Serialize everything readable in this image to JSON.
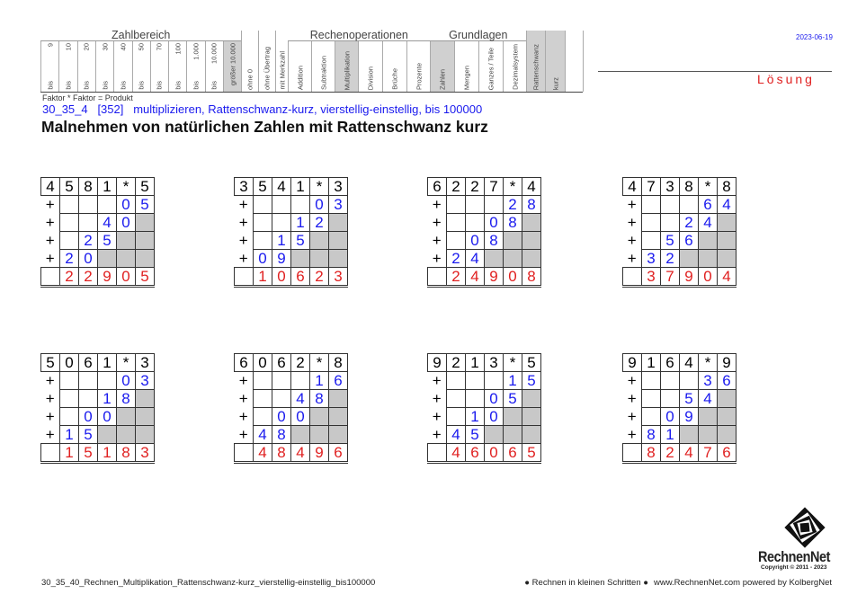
{
  "header": {
    "groups": [
      "Zahlbereich",
      "Rechenoperationen",
      "Grundlagen"
    ],
    "zahlbereich": [
      {
        "top": "9",
        "bot": "bis"
      },
      {
        "top": "10",
        "bot": "bis"
      },
      {
        "top": "20",
        "bot": "bis"
      },
      {
        "top": "30",
        "bot": "bis"
      },
      {
        "top": "40",
        "bot": "bis"
      },
      {
        "top": "50",
        "bot": "bis"
      },
      {
        "top": "70",
        "bot": "bis"
      },
      {
        "top": "100",
        "bot": "bis"
      },
      {
        "top": "1.000",
        "bot": "bis"
      },
      {
        "top": "10.000",
        "bot": "bis"
      },
      {
        "top": "größer 10.000",
        "bot": "",
        "selected": true
      }
    ],
    "extras": [
      {
        "label": "ohne 0"
      },
      {
        "label": "ohne Übertrag"
      },
      {
        "label": "mit Merkzahl"
      }
    ],
    "rechenoperationen": [
      {
        "label": "Addition"
      },
      {
        "label": "Subtraktion"
      },
      {
        "label": "Multiplikation",
        "selected": true
      },
      {
        "label": "Division"
      },
      {
        "label": "Brüche"
      },
      {
        "label": "Prozente"
      }
    ],
    "grundlagen": [
      {
        "label": "Zahlen",
        "selected": true
      },
      {
        "label": "Mengen"
      },
      {
        "label": "Ganzes / Teile"
      },
      {
        "label": "Dezimalsystem"
      }
    ],
    "method": [
      {
        "label": "Rattenschwanz",
        "selected": true
      },
      {
        "label": "kurz",
        "selected": true
      },
      {
        "label": ""
      }
    ]
  },
  "formula": "Faktor * Faktor = Produkt",
  "subtitle": "30_35_4   [352]   multiplizieren, Rattenschwanz-kurz, vierstellig-einstellig, bis 100000",
  "title": "Malnehmen von natürlichen Zahlen mit Rattenschwanz kurz",
  "date": "2023-06-19",
  "solution_label": "Lösung",
  "colors": {
    "blue": "#1a1aee",
    "red": "#e02020",
    "grey": "#c8c8c8"
  },
  "exercises": [
    {
      "factor1": [
        "4",
        "5",
        "8",
        "1"
      ],
      "op": "*",
      "factor2": "5",
      "partials": [
        "05",
        "40",
        "25",
        "20"
      ],
      "result": [
        "2",
        "2",
        "9",
        "0",
        "5"
      ]
    },
    {
      "factor1": [
        "3",
        "5",
        "4",
        "1"
      ],
      "op": "*",
      "factor2": "3",
      "partials": [
        "03",
        "12",
        "15",
        "09"
      ],
      "result": [
        "1",
        "0",
        "6",
        "2",
        "3"
      ]
    },
    {
      "factor1": [
        "6",
        "2",
        "2",
        "7"
      ],
      "op": "*",
      "factor2": "4",
      "partials": [
        "28",
        "08",
        "08",
        "24"
      ],
      "result": [
        "2",
        "4",
        "9",
        "0",
        "8"
      ]
    },
    {
      "factor1": [
        "4",
        "7",
        "3",
        "8"
      ],
      "op": "*",
      "factor2": "8",
      "partials": [
        "64",
        "24",
        "56",
        "32"
      ],
      "result": [
        "3",
        "7",
        "9",
        "0",
        "4"
      ]
    },
    {
      "factor1": [
        "5",
        "0",
        "6",
        "1"
      ],
      "op": "*",
      "factor2": "3",
      "partials": [
        "03",
        "18",
        "00",
        "15"
      ],
      "result": [
        "1",
        "5",
        "1",
        "8",
        "3"
      ]
    },
    {
      "factor1": [
        "6",
        "0",
        "6",
        "2"
      ],
      "op": "*",
      "factor2": "8",
      "partials": [
        "16",
        "48",
        "00",
        "48"
      ],
      "result": [
        "4",
        "8",
        "4",
        "9",
        "6"
      ]
    },
    {
      "factor1": [
        "9",
        "2",
        "1",
        "3"
      ],
      "op": "*",
      "factor2": "5",
      "partials": [
        "15",
        "05",
        "10",
        "45"
      ],
      "result": [
        "4",
        "6",
        "0",
        "6",
        "5"
      ]
    },
    {
      "factor1": [
        "9",
        "1",
        "6",
        "4"
      ],
      "op": "*",
      "factor2": "9",
      "partials": [
        "36",
        "54",
        "09",
        "81"
      ],
      "result": [
        "8",
        "2",
        "4",
        "7",
        "6"
      ]
    }
  ],
  "plus_sign": "+",
  "footer": {
    "filename": "30_35_40_Rechnen_Multiplikation_Rattenschwanz-kurz_vierstellig-einstellig_bis100000",
    "tagline": "● Rechnen in kleinen Schritten ●",
    "website": "www.RechnenNet.com powered by KolbergNet"
  },
  "logo": {
    "name": "RechnenNet",
    "copyright": "Copyright © 2011 - 2023"
  }
}
